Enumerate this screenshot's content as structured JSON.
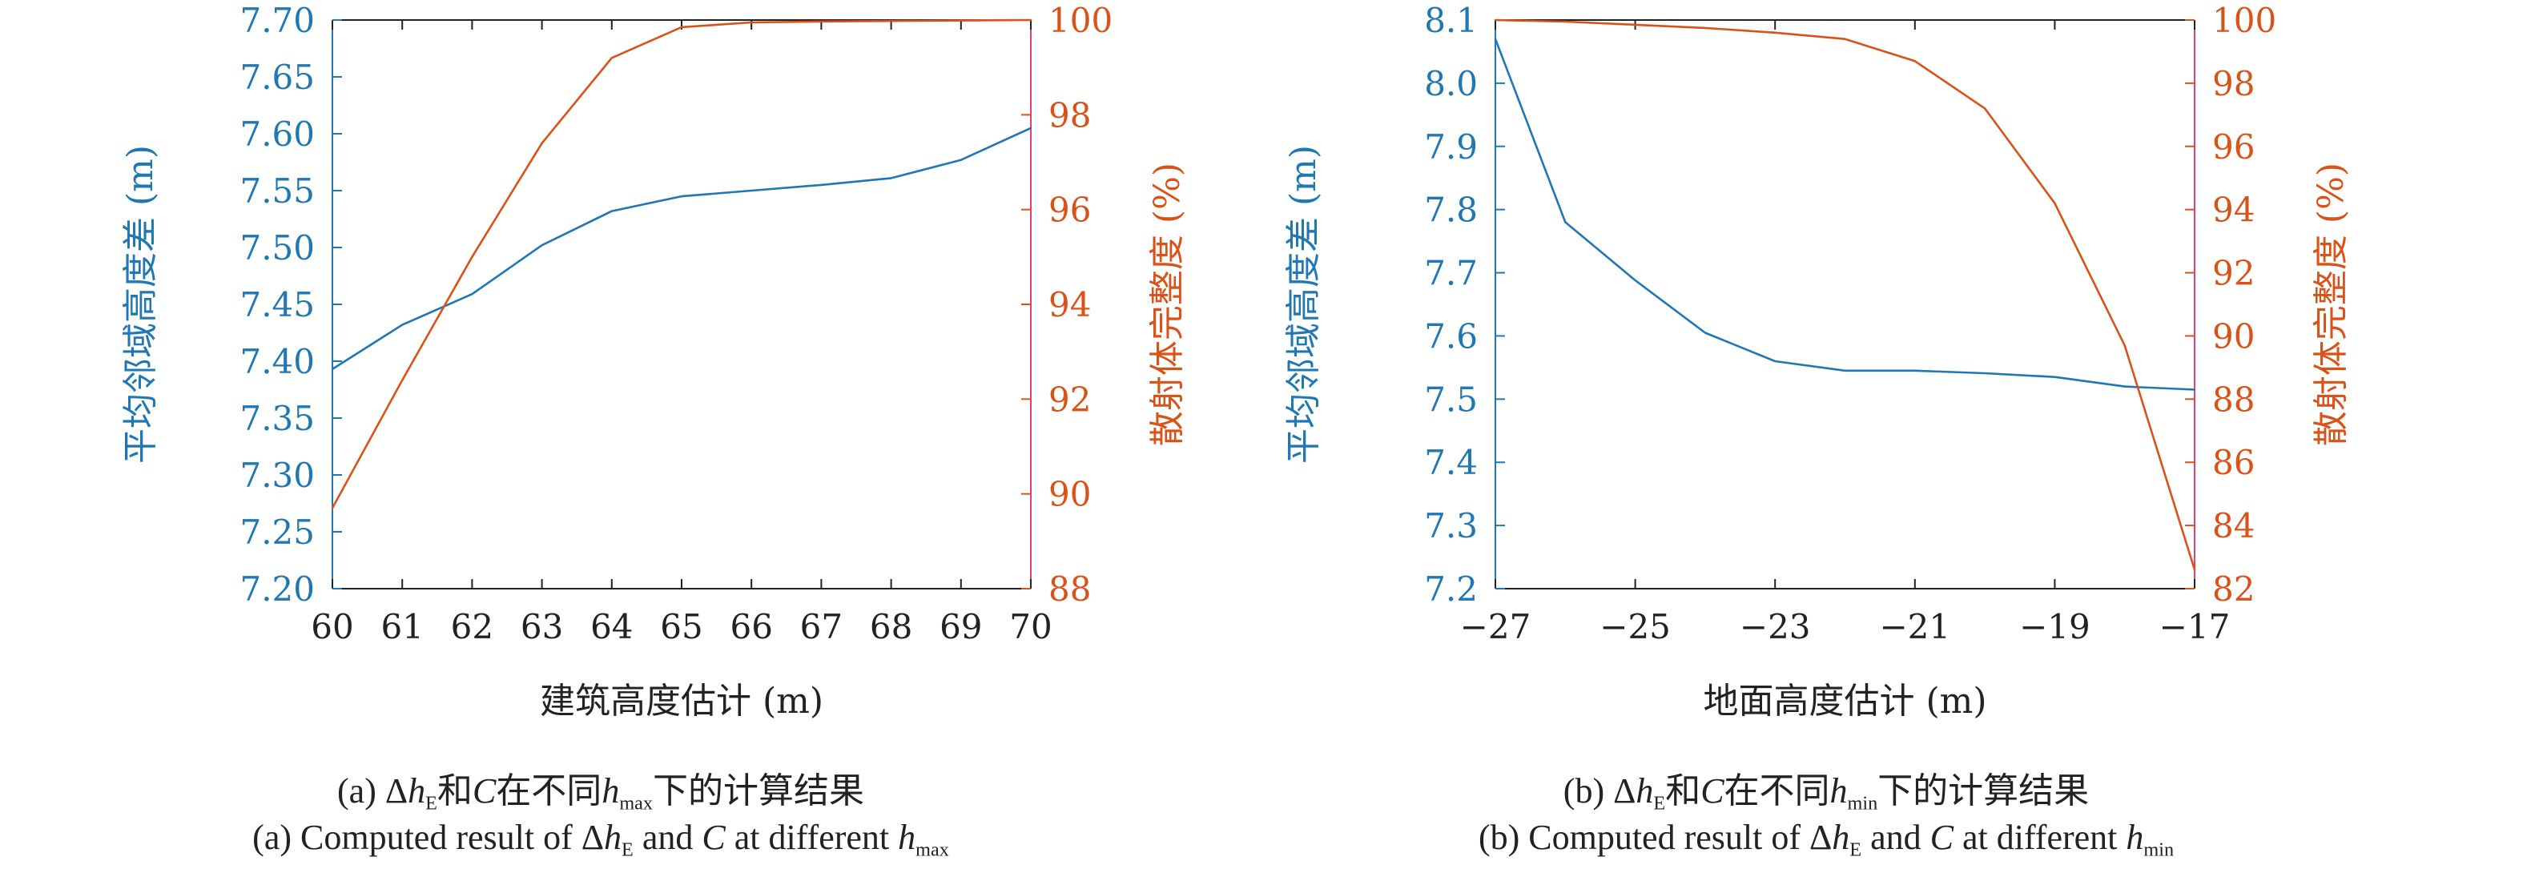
{
  "colors": {
    "left_axis": "#1f77b4",
    "right_axis": "#d95319",
    "right_spine": "#e0407a",
    "frame": "#222222"
  },
  "chart_data": [
    {
      "type": "line",
      "panel": "a",
      "xlabel": "建筑高度估计 (m)",
      "ylabel_left": "平均邻域高度差 (m)",
      "ylabel_right": "散射体完整度 (%)",
      "x": [
        60,
        61,
        62,
        63,
        64,
        65,
        66,
        67,
        68,
        69,
        70
      ],
      "xticks": [
        "60",
        "61",
        "62",
        "63",
        "64",
        "65",
        "66",
        "67",
        "68",
        "69",
        "70"
      ],
      "xlim": [
        60,
        70
      ],
      "ylim_left": [
        7.2,
        7.7
      ],
      "yticks_left": [
        "7.20",
        "7.25",
        "7.30",
        "7.35",
        "7.40",
        "7.45",
        "7.50",
        "7.55",
        "7.60",
        "7.65",
        "7.70"
      ],
      "ylim_right": [
        88,
        100
      ],
      "yticks_right": [
        "88",
        "90",
        "92",
        "94",
        "96",
        "98",
        "100"
      ],
      "grid": false,
      "series": [
        {
          "axis": "left",
          "color": "#1f77b4",
          "values": [
            7.393,
            7.432,
            7.459,
            7.502,
            7.532,
            7.545,
            7.55,
            7.555,
            7.561,
            7.577,
            7.605
          ]
        },
        {
          "axis": "right",
          "color": "#d95319",
          "values": [
            89.7,
            92.4,
            95.0,
            97.4,
            99.2,
            99.85,
            99.95,
            99.97,
            99.98,
            99.99,
            100
          ]
        }
      ],
      "caption_cn": {
        "prefix": "(a) Δ",
        "sym_h": "h",
        "sub_E": "E",
        "and_text": "和",
        "sym_C": "C",
        "mid_text": "在不同",
        "sym_h2": "h",
        "sub_var": "max",
        "suffix": "下的计算结果"
      },
      "caption_en": {
        "prefix": "(a) Computed result of Δ",
        "sym_h": "h",
        "sub_E": "E",
        "and_text": " and ",
        "sym_C": "C",
        "mid_text": " at different ",
        "sym_h2": "h",
        "sub_var": "max"
      }
    },
    {
      "type": "line",
      "panel": "b",
      "xlabel": "地面高度估计 (m)",
      "ylabel_left": "平均邻域高度差 (m)",
      "ylabel_right": "散射体完整度 (%)",
      "x": [
        -27,
        -26,
        -25,
        -24,
        -23,
        -22,
        -21,
        -20,
        -19,
        -18,
        -17
      ],
      "xticks": [
        "−27",
        "−25",
        "−23",
        "−21",
        "−19",
        "−17"
      ],
      "xtick_values": [
        -27,
        -25,
        -23,
        -21,
        -19,
        -17
      ],
      "xlim": [
        -27,
        -17
      ],
      "ylim_left": [
        7.2,
        8.1
      ],
      "yticks_left": [
        "7.2",
        "7.3",
        "7.4",
        "7.5",
        "7.6",
        "7.7",
        "7.8",
        "7.9",
        "8.0",
        "8.1"
      ],
      "ylim_right": [
        82,
        100
      ],
      "yticks_right": [
        "82",
        "84",
        "86",
        "88",
        "90",
        "92",
        "94",
        "96",
        "98",
        "100"
      ],
      "grid": false,
      "series": [
        {
          "axis": "left",
          "color": "#1f77b4",
          "values": [
            8.07,
            7.78,
            7.688,
            7.605,
            7.56,
            7.545,
            7.545,
            7.541,
            7.535,
            7.52,
            7.515
          ]
        },
        {
          "axis": "right",
          "color": "#d95319",
          "values": [
            100,
            99.95,
            99.85,
            99.75,
            99.6,
            99.4,
            98.7,
            97.2,
            94.2,
            89.7,
            82.6
          ]
        }
      ],
      "caption_cn": {
        "prefix": "(b) Δ",
        "sym_h": "h",
        "sub_E": "E",
        "and_text": "和",
        "sym_C": "C",
        "mid_text": "在不同",
        "sym_h2": "h",
        "sub_var": "min",
        "suffix": "下的计算结果"
      },
      "caption_en": {
        "prefix": "(b) Computed result of Δ",
        "sym_h": "h",
        "sub_E": "E",
        "and_text": " and ",
        "sym_C": "C",
        "mid_text": " at different ",
        "sym_h2": "h",
        "sub_var": "min"
      }
    }
  ]
}
